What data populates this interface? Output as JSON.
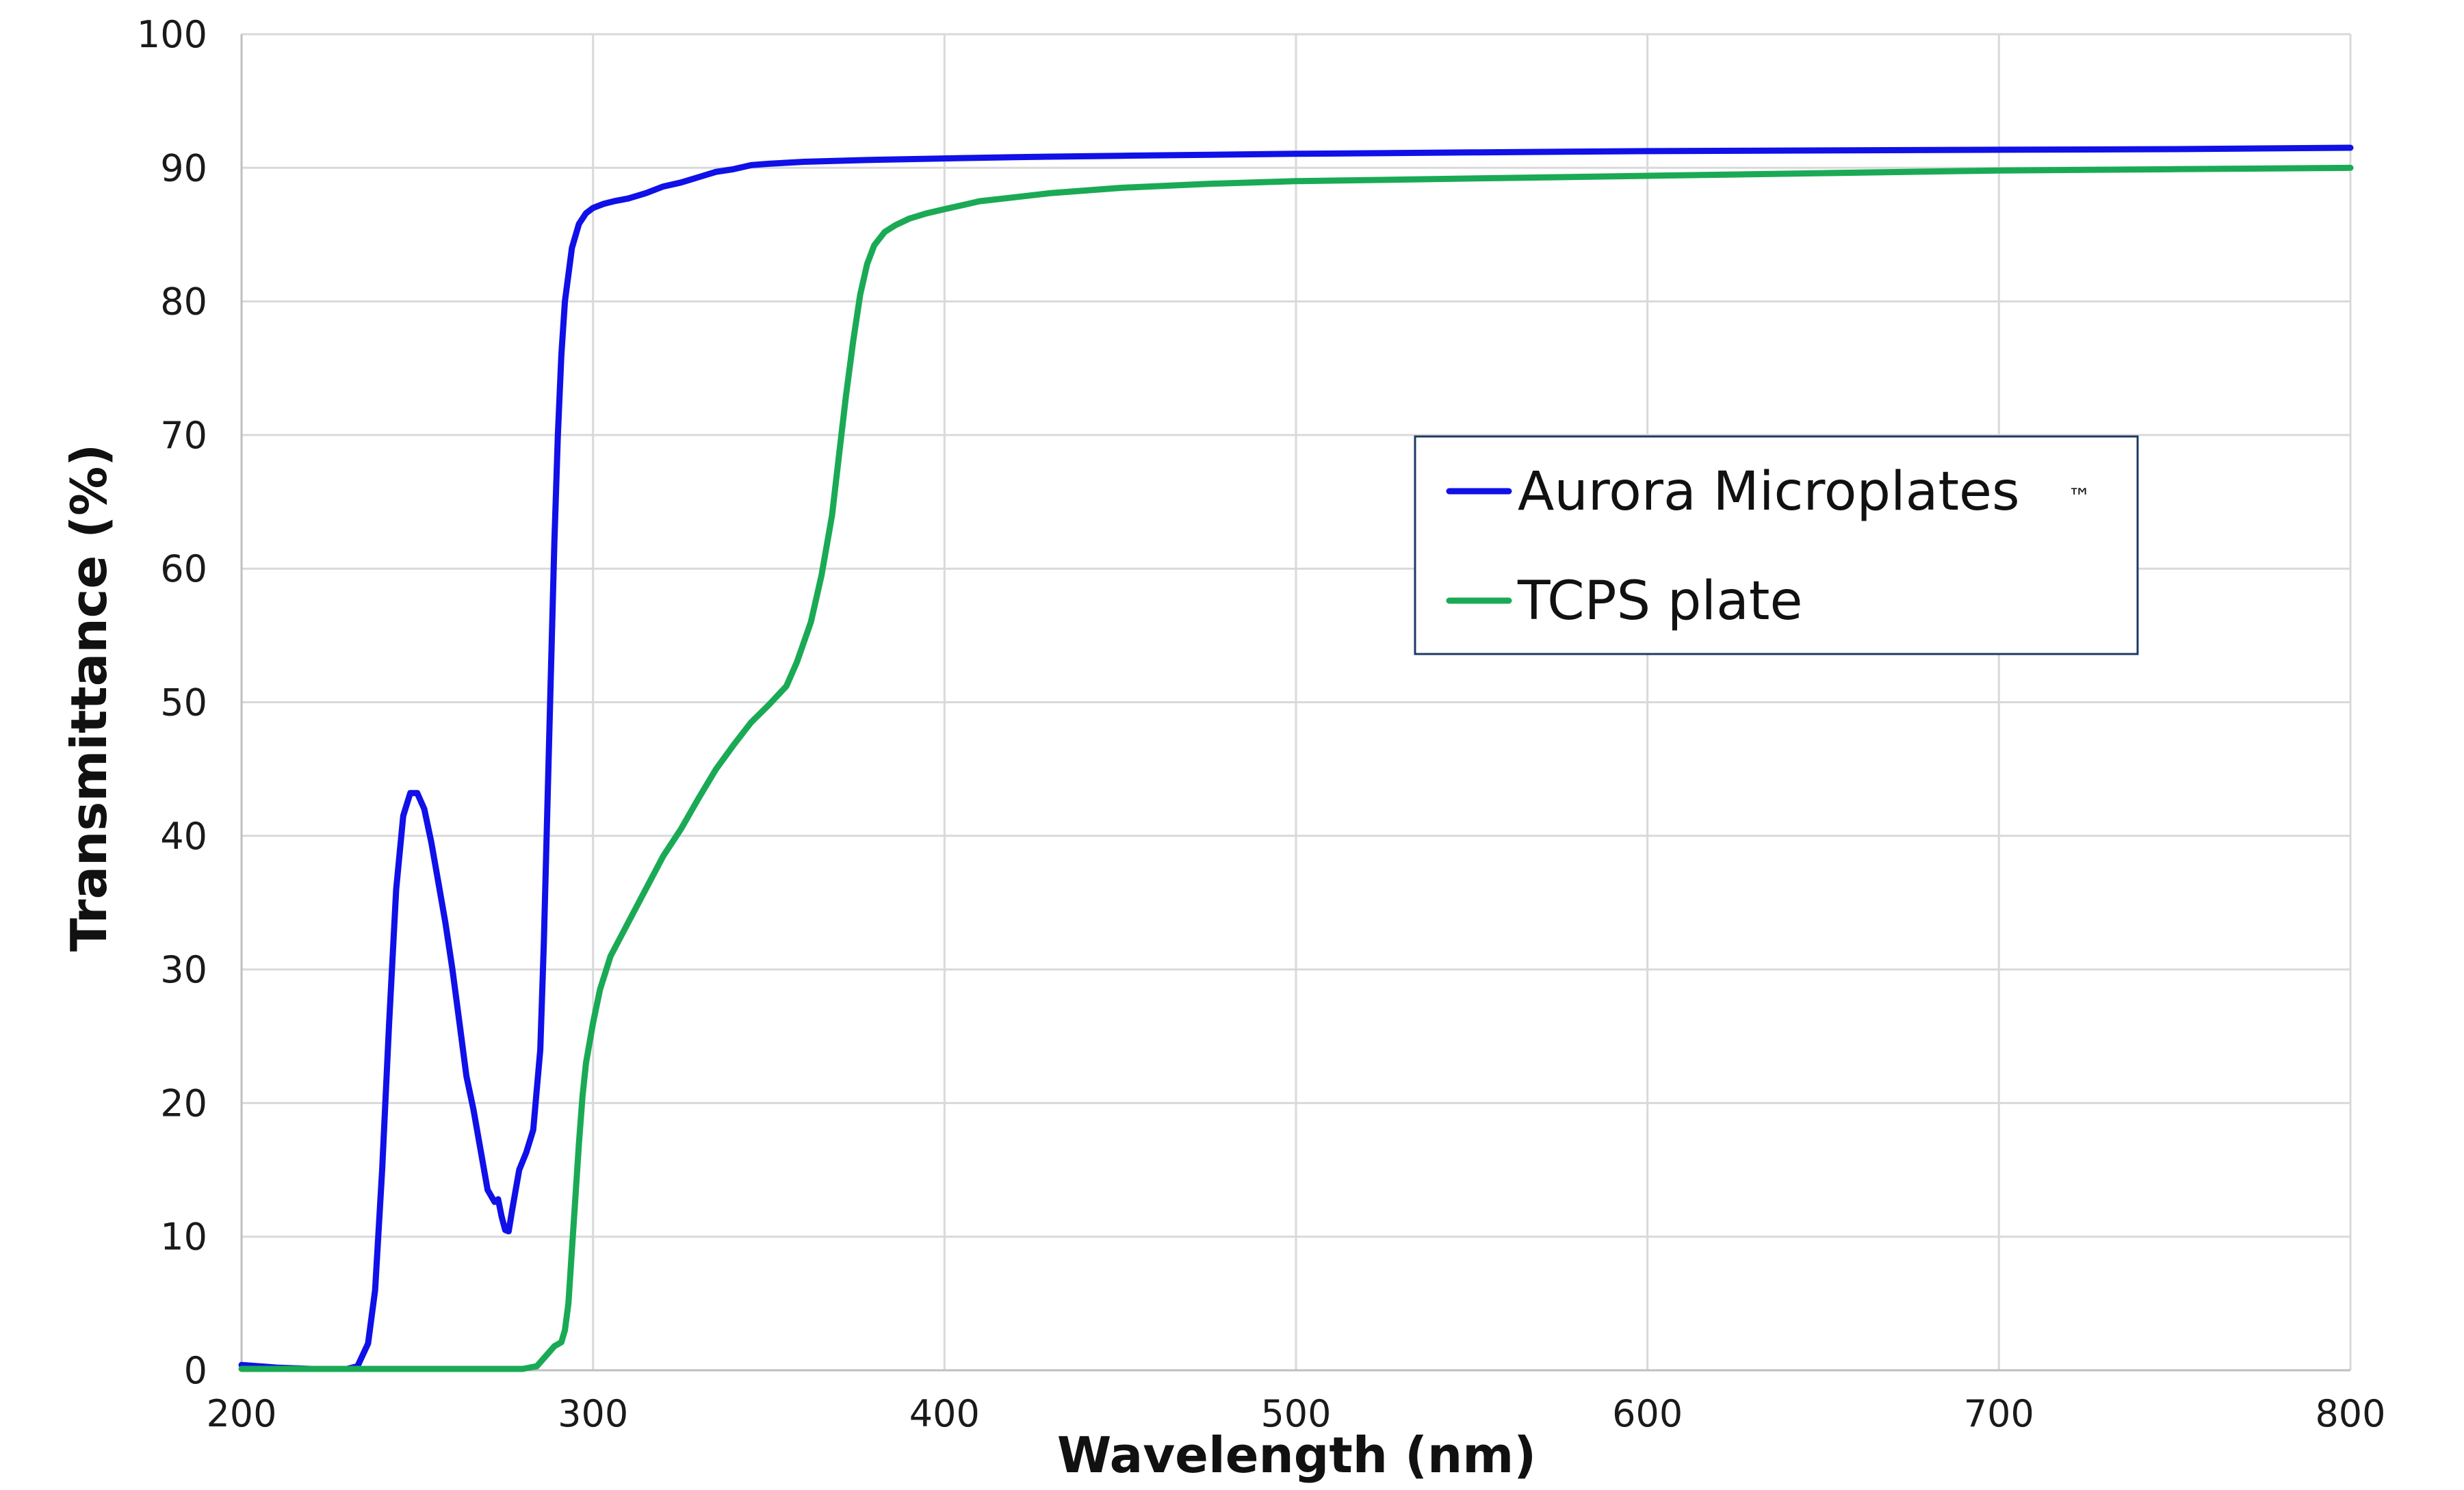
{
  "chart_data": {
    "type": "line",
    "xlabel": "Wavelength (nm)",
    "ylabel": "Transmittance (%)",
    "xlim": [
      200,
      800
    ],
    "ylim": [
      0,
      100
    ],
    "x_ticks": [
      "200",
      "300",
      "400",
      "500",
      "600",
      "700",
      "800"
    ],
    "y_ticks": [
      "0",
      "10",
      "20",
      "30",
      "40",
      "50",
      "60",
      "70",
      "80",
      "90",
      "100"
    ],
    "grid": true,
    "legend": {
      "placement": "center-right",
      "border_color": "#1f3864"
    },
    "series": [
      {
        "name": "Aurora Microplates",
        "name_suffix": "™",
        "color": "#1010e8",
        "points": [
          [
            200,
            0.4
          ],
          [
            210,
            0.2
          ],
          [
            220,
            0.1
          ],
          [
            230,
            0.1
          ],
          [
            233,
            0.3
          ],
          [
            236,
            2
          ],
          [
            238,
            6
          ],
          [
            240,
            15
          ],
          [
            242,
            26
          ],
          [
            244,
            36
          ],
          [
            246,
            41.5
          ],
          [
            248,
            43.2
          ],
          [
            250,
            43.2
          ],
          [
            252,
            42
          ],
          [
            254,
            39.5
          ],
          [
            256,
            36.5
          ],
          [
            258,
            33.5
          ],
          [
            260,
            30
          ],
          [
            262,
            26
          ],
          [
            264,
            22
          ],
          [
            266,
            19.5
          ],
          [
            268,
            16.5
          ],
          [
            270,
            13.5
          ],
          [
            272,
            12.6
          ],
          [
            273,
            12.8
          ],
          [
            274,
            11.5
          ],
          [
            275,
            10.5
          ],
          [
            276,
            10.4
          ],
          [
            277,
            12
          ],
          [
            279,
            15
          ],
          [
            281,
            16.3
          ],
          [
            283,
            18
          ],
          [
            285,
            24
          ],
          [
            286,
            32
          ],
          [
            287,
            42
          ],
          [
            288,
            52
          ],
          [
            289,
            62
          ],
          [
            290,
            70
          ],
          [
            291,
            76
          ],
          [
            292,
            80
          ],
          [
            294,
            84
          ],
          [
            296,
            85.8
          ],
          [
            298,
            86.6
          ],
          [
            300,
            87
          ],
          [
            303,
            87.3
          ],
          [
            306,
            87.5
          ],
          [
            310,
            87.7
          ],
          [
            315,
            88.1
          ],
          [
            320,
            88.6
          ],
          [
            325,
            88.9
          ],
          [
            330,
            89.3
          ],
          [
            335,
            89.7
          ],
          [
            340,
            89.9
          ],
          [
            345,
            90.2
          ],
          [
            350,
            90.3
          ],
          [
            360,
            90.45
          ],
          [
            380,
            90.6
          ],
          [
            400,
            90.7
          ],
          [
            420,
            90.8
          ],
          [
            450,
            90.9
          ],
          [
            500,
            91.05
          ],
          [
            550,
            91.15
          ],
          [
            600,
            91.25
          ],
          [
            650,
            91.3
          ],
          [
            700,
            91.35
          ],
          [
            750,
            91.4
          ],
          [
            800,
            91.5
          ]
        ]
      },
      {
        "name": "TCPS plate",
        "color": "#1aaa55",
        "points": [
          [
            200,
            0.1
          ],
          [
            250,
            0.1
          ],
          [
            280,
            0.1
          ],
          [
            284,
            0.3
          ],
          [
            287,
            1.2
          ],
          [
            289,
            1.8
          ],
          [
            291,
            2.1
          ],
          [
            292,
            3
          ],
          [
            293,
            5
          ],
          [
            294,
            9
          ],
          [
            295,
            13
          ],
          [
            296,
            17
          ],
          [
            297,
            20.5
          ],
          [
            298,
            23
          ],
          [
            300,
            26
          ],
          [
            302,
            28.5
          ],
          [
            305,
            31
          ],
          [
            310,
            33.5
          ],
          [
            315,
            36
          ],
          [
            320,
            38.5
          ],
          [
            325,
            40.5
          ],
          [
            330,
            42.8
          ],
          [
            335,
            45
          ],
          [
            340,
            46.8
          ],
          [
            345,
            48.5
          ],
          [
            350,
            49.8
          ],
          [
            355,
            51.2
          ],
          [
            358,
            53
          ],
          [
            362,
            56
          ],
          [
            365,
            59.5
          ],
          [
            368,
            64
          ],
          [
            370,
            68.5
          ],
          [
            372,
            73
          ],
          [
            374,
            77
          ],
          [
            376,
            80.5
          ],
          [
            378,
            82.8
          ],
          [
            380,
            84.2
          ],
          [
            383,
            85.2
          ],
          [
            386,
            85.7
          ],
          [
            390,
            86.2
          ],
          [
            395,
            86.6
          ],
          [
            400,
            86.9
          ],
          [
            405,
            87.2
          ],
          [
            410,
            87.5
          ],
          [
            420,
            87.8
          ],
          [
            430,
            88.1
          ],
          [
            440,
            88.3
          ],
          [
            450,
            88.5
          ],
          [
            475,
            88.8
          ],
          [
            500,
            89.0
          ],
          [
            550,
            89.2
          ],
          [
            600,
            89.4
          ],
          [
            650,
            89.6
          ],
          [
            700,
            89.8
          ],
          [
            750,
            89.9
          ],
          [
            800,
            90.0
          ]
        ]
      }
    ]
  }
}
